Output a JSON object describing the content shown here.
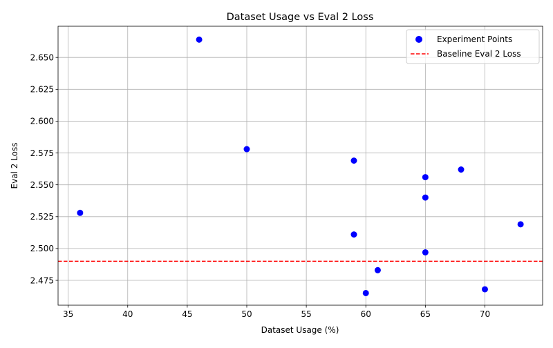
{
  "chart_data": {
    "type": "scatter",
    "title": "Dataset Usage vs Eval 2 Loss",
    "xlabel": "Dataset Usage (%)",
    "ylabel": "Eval 2 Loss",
    "xlim": [
      34.15,
      74.85
    ],
    "ylim": [
      2.4555,
      2.6745
    ],
    "xticks": [
      35,
      40,
      45,
      50,
      55,
      60,
      65,
      70
    ],
    "xtick_labels": [
      "35",
      "40",
      "45",
      "50",
      "55",
      "60",
      "65",
      "70"
    ],
    "yticks": [
      2.475,
      2.5,
      2.525,
      2.55,
      2.575,
      2.6,
      2.625,
      2.65
    ],
    "ytick_labels": [
      "2.475",
      "2.500",
      "2.525",
      "2.550",
      "2.575",
      "2.600",
      "2.625",
      "2.650"
    ],
    "grid": true,
    "legend_position": "top-right",
    "series": [
      {
        "name": "Experiment Points",
        "kind": "scatter",
        "color": "#0000ff",
        "points": [
          {
            "x": 46,
            "y": 2.664
          },
          {
            "x": 50,
            "y": 2.578
          },
          {
            "x": 59,
            "y": 2.569
          },
          {
            "x": 68,
            "y": 2.562
          },
          {
            "x": 65,
            "y": 2.556
          },
          {
            "x": 65,
            "y": 2.54
          },
          {
            "x": 36,
            "y": 2.528
          },
          {
            "x": 73,
            "y": 2.519
          },
          {
            "x": 59,
            "y": 2.511
          },
          {
            "x": 65,
            "y": 2.497
          },
          {
            "x": 61,
            "y": 2.483
          },
          {
            "x": 70,
            "y": 2.468
          },
          {
            "x": 60,
            "y": 2.465
          }
        ]
      },
      {
        "name": "Baseline Eval 2 Loss",
        "kind": "hline",
        "color": "#ff0000",
        "style": "dashed",
        "y": 2.49
      }
    ]
  }
}
